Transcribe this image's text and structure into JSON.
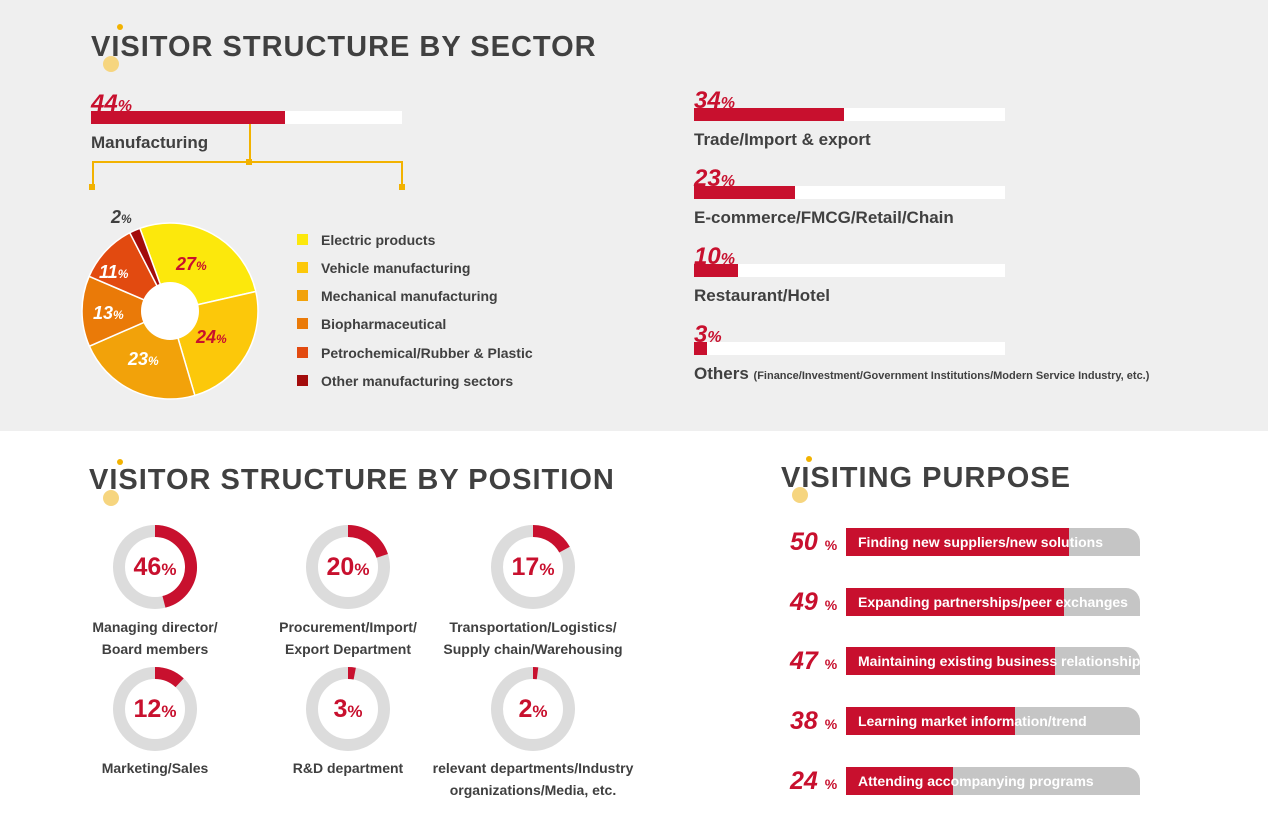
{
  "titles": {
    "sector": "VISITOR STRUCTURE BY SECTOR",
    "position": "VISITOR STRUCTURE BY POSITION",
    "purpose": "VISITING PURPOSE"
  },
  "colors": {
    "accent_red": "#c8102e",
    "bar_gray": "#c5c5c5",
    "ring_gray": "#dcdcdc",
    "band_gray": "#efefef",
    "gold": "#f2b200"
  },
  "chart_data": [
    {
      "type": "bar",
      "title": "VISITOR STRUCTURE BY SECTOR",
      "unit": "%",
      "categories": [
        "Manufacturing",
        "Trade/Import & export",
        "E-commerce/FMCG/Retail/Chain",
        "Restaurant/Hotel",
        "Others"
      ],
      "values": [
        44,
        34,
        23,
        10,
        3
      ],
      "value_labels": [
        "44",
        "34",
        "23",
        "10",
        "3"
      ],
      "others_note": "(Finance/Investment/Government Institutions/Modern Service Industry, etc.)",
      "xlim": [
        0,
        100
      ]
    },
    {
      "type": "pie",
      "donut": true,
      "unit": "%",
      "categories": [
        "Electric products",
        "Vehicle manufacturing",
        "Mechanical manufacturing",
        "Biopharmaceutical",
        "Petrochemical/Rubber & Plastic",
        "Other manufacturing sectors"
      ],
      "values": [
        27,
        24,
        23,
        13,
        11,
        2
      ],
      "value_labels": [
        "27",
        "24",
        "23",
        "13",
        "11",
        "2"
      ],
      "colors": [
        "#fce80c",
        "#fcc80a",
        "#f2a20a",
        "#ea7a08",
        "#e24a10",
        "#a30c0c"
      ],
      "label_colors": [
        "#c8102e",
        "#c8102e",
        "#ffffff",
        "#ffffff",
        "#ffffff",
        "#404040"
      ],
      "legend_position": "right"
    },
    {
      "type": "pie",
      "donut": true,
      "title": "VISITOR STRUCTURE BY POSITION",
      "unit": "%",
      "categories": [
        [
          "Managing director/",
          "Board members"
        ],
        [
          "Procurement/Import/",
          "Export Department"
        ],
        [
          "Transportation/Logistics/",
          "Supply chain/Warehousing"
        ],
        [
          "Marketing/Sales"
        ],
        [
          "R&D department"
        ],
        [
          "relevant departments/Industry",
          "organizations/Media, etc."
        ]
      ],
      "values": [
        46,
        20,
        17,
        12,
        3,
        2
      ],
      "value_labels": [
        "46",
        "20",
        "17",
        "12",
        "3",
        "2"
      ]
    },
    {
      "type": "bar",
      "title": "VISITING PURPOSE",
      "unit": "%",
      "categories": [
        "Finding new suppliers/new solutions",
        "Expanding partnerships/peer exchanges",
        "Maintaining existing business relationships",
        "Learning market information/trend",
        "Attending accompanying programs"
      ],
      "values": [
        50,
        49,
        47,
        38,
        24
      ],
      "value_labels": [
        "50",
        "49",
        "47",
        "38",
        "24"
      ],
      "xlim": [
        0,
        66
      ]
    }
  ]
}
